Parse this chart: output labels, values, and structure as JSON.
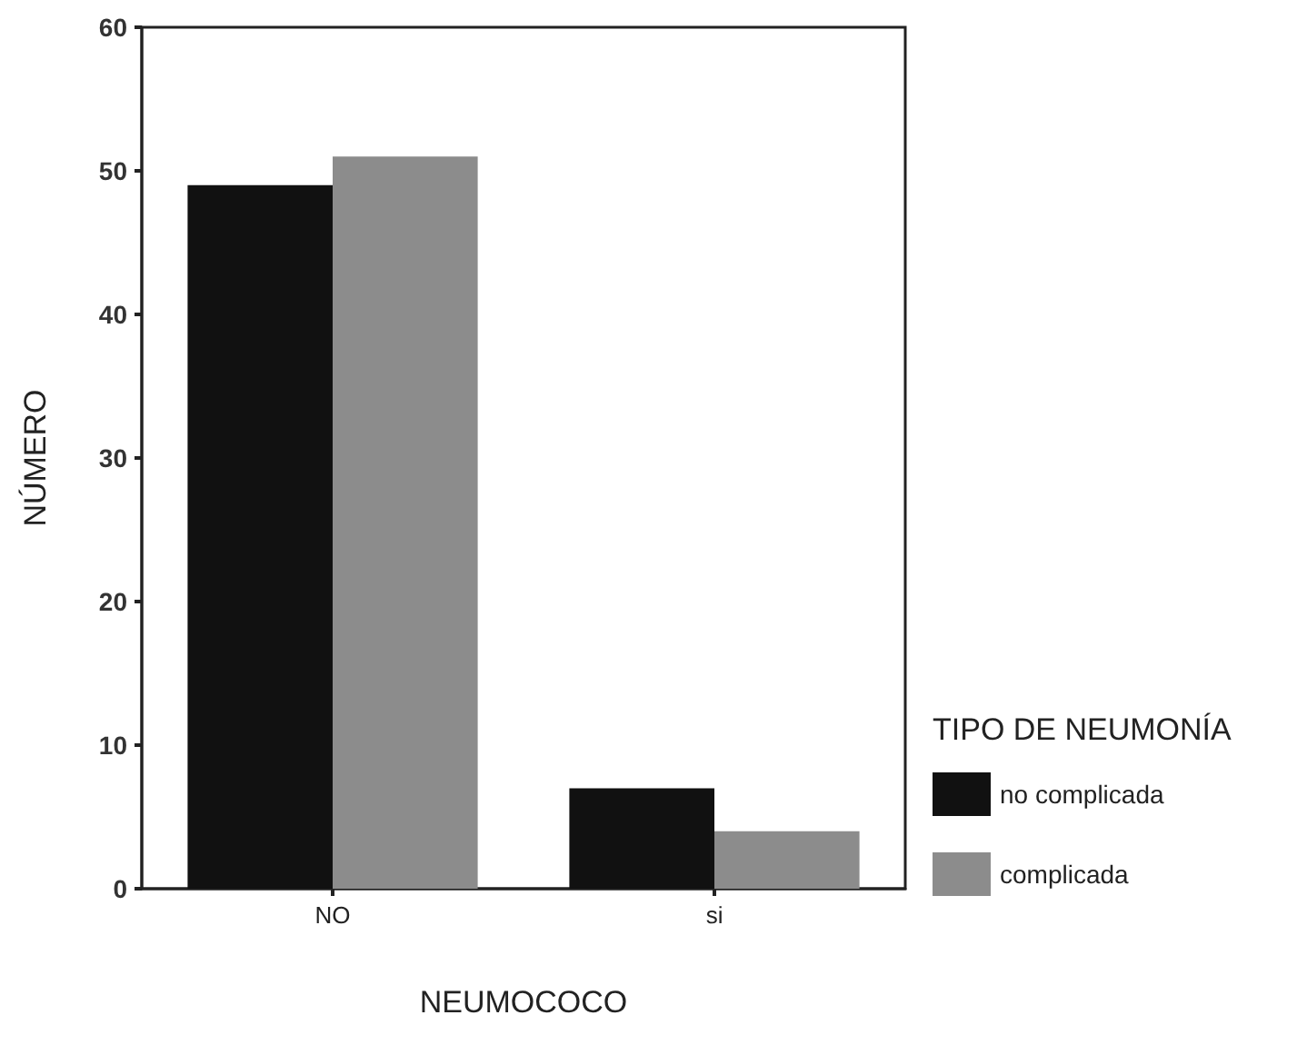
{
  "chart_data": {
    "type": "bar",
    "xlabel": "NEUMOCOCO",
    "ylabel": "NÚMERO",
    "legend_title": "TIPO DE NEUMONÍA",
    "categories": [
      "NO",
      "si"
    ],
    "series": [
      {
        "name": "no complicada",
        "color": "#111111",
        "values": [
          49,
          7
        ]
      },
      {
        "name": "complicada",
        "color": "#8c8c8c",
        "values": [
          51,
          4
        ]
      }
    ],
    "ylim": [
      0,
      60
    ],
    "yticks": [
      0,
      10,
      20,
      30,
      40,
      50,
      60
    ],
    "grid": false,
    "legend": "right"
  }
}
